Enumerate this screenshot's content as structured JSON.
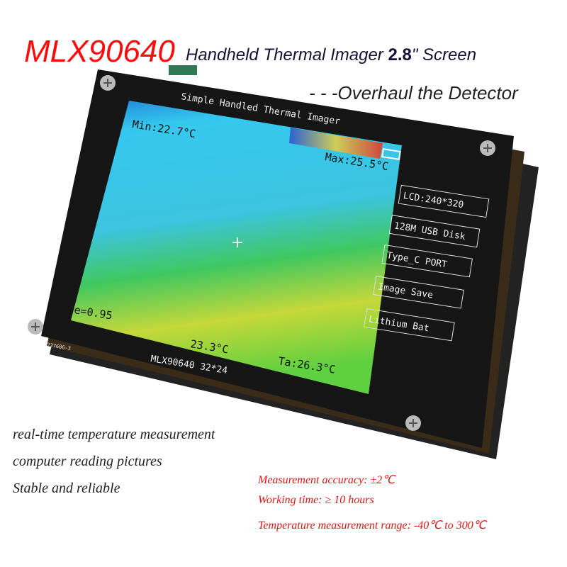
{
  "header": {
    "model": "MLX90640",
    "title_pre": "Handheld Thermal Imager",
    "screen_size": "2.8",
    "title_post": "\" Screen",
    "subtitle": "- - -Overhaul the Detector"
  },
  "device": {
    "top_label": "Simple Handled Thermal Imager",
    "bottom_label": "MLX90640 32*24",
    "serial": "3227686-3",
    "screen": {
      "min": "Min:22.7°C",
      "max": "Max:25.5°C",
      "emissivity": "e=0.95",
      "center_temp": "23.3°C",
      "ambient": "Ta:26.3°C"
    },
    "feature_labels": [
      "LCD:240*320",
      "128M USB Disk",
      "Type_C PORT",
      "Image Save",
      "Lithium Bat"
    ]
  },
  "features": [
    "real-time temperature measurement",
    "computer reading pictures",
    "Stable and reliable"
  ],
  "specs": [
    "Measurement accuracy: ±2℃",
    "Working time: ≥ 10 hours",
    "Temperature measurement range: -40℃  to 300℃"
  ],
  "colors": {
    "model": "#ff0a0a",
    "specs": "#e01515",
    "device": "#151515"
  }
}
